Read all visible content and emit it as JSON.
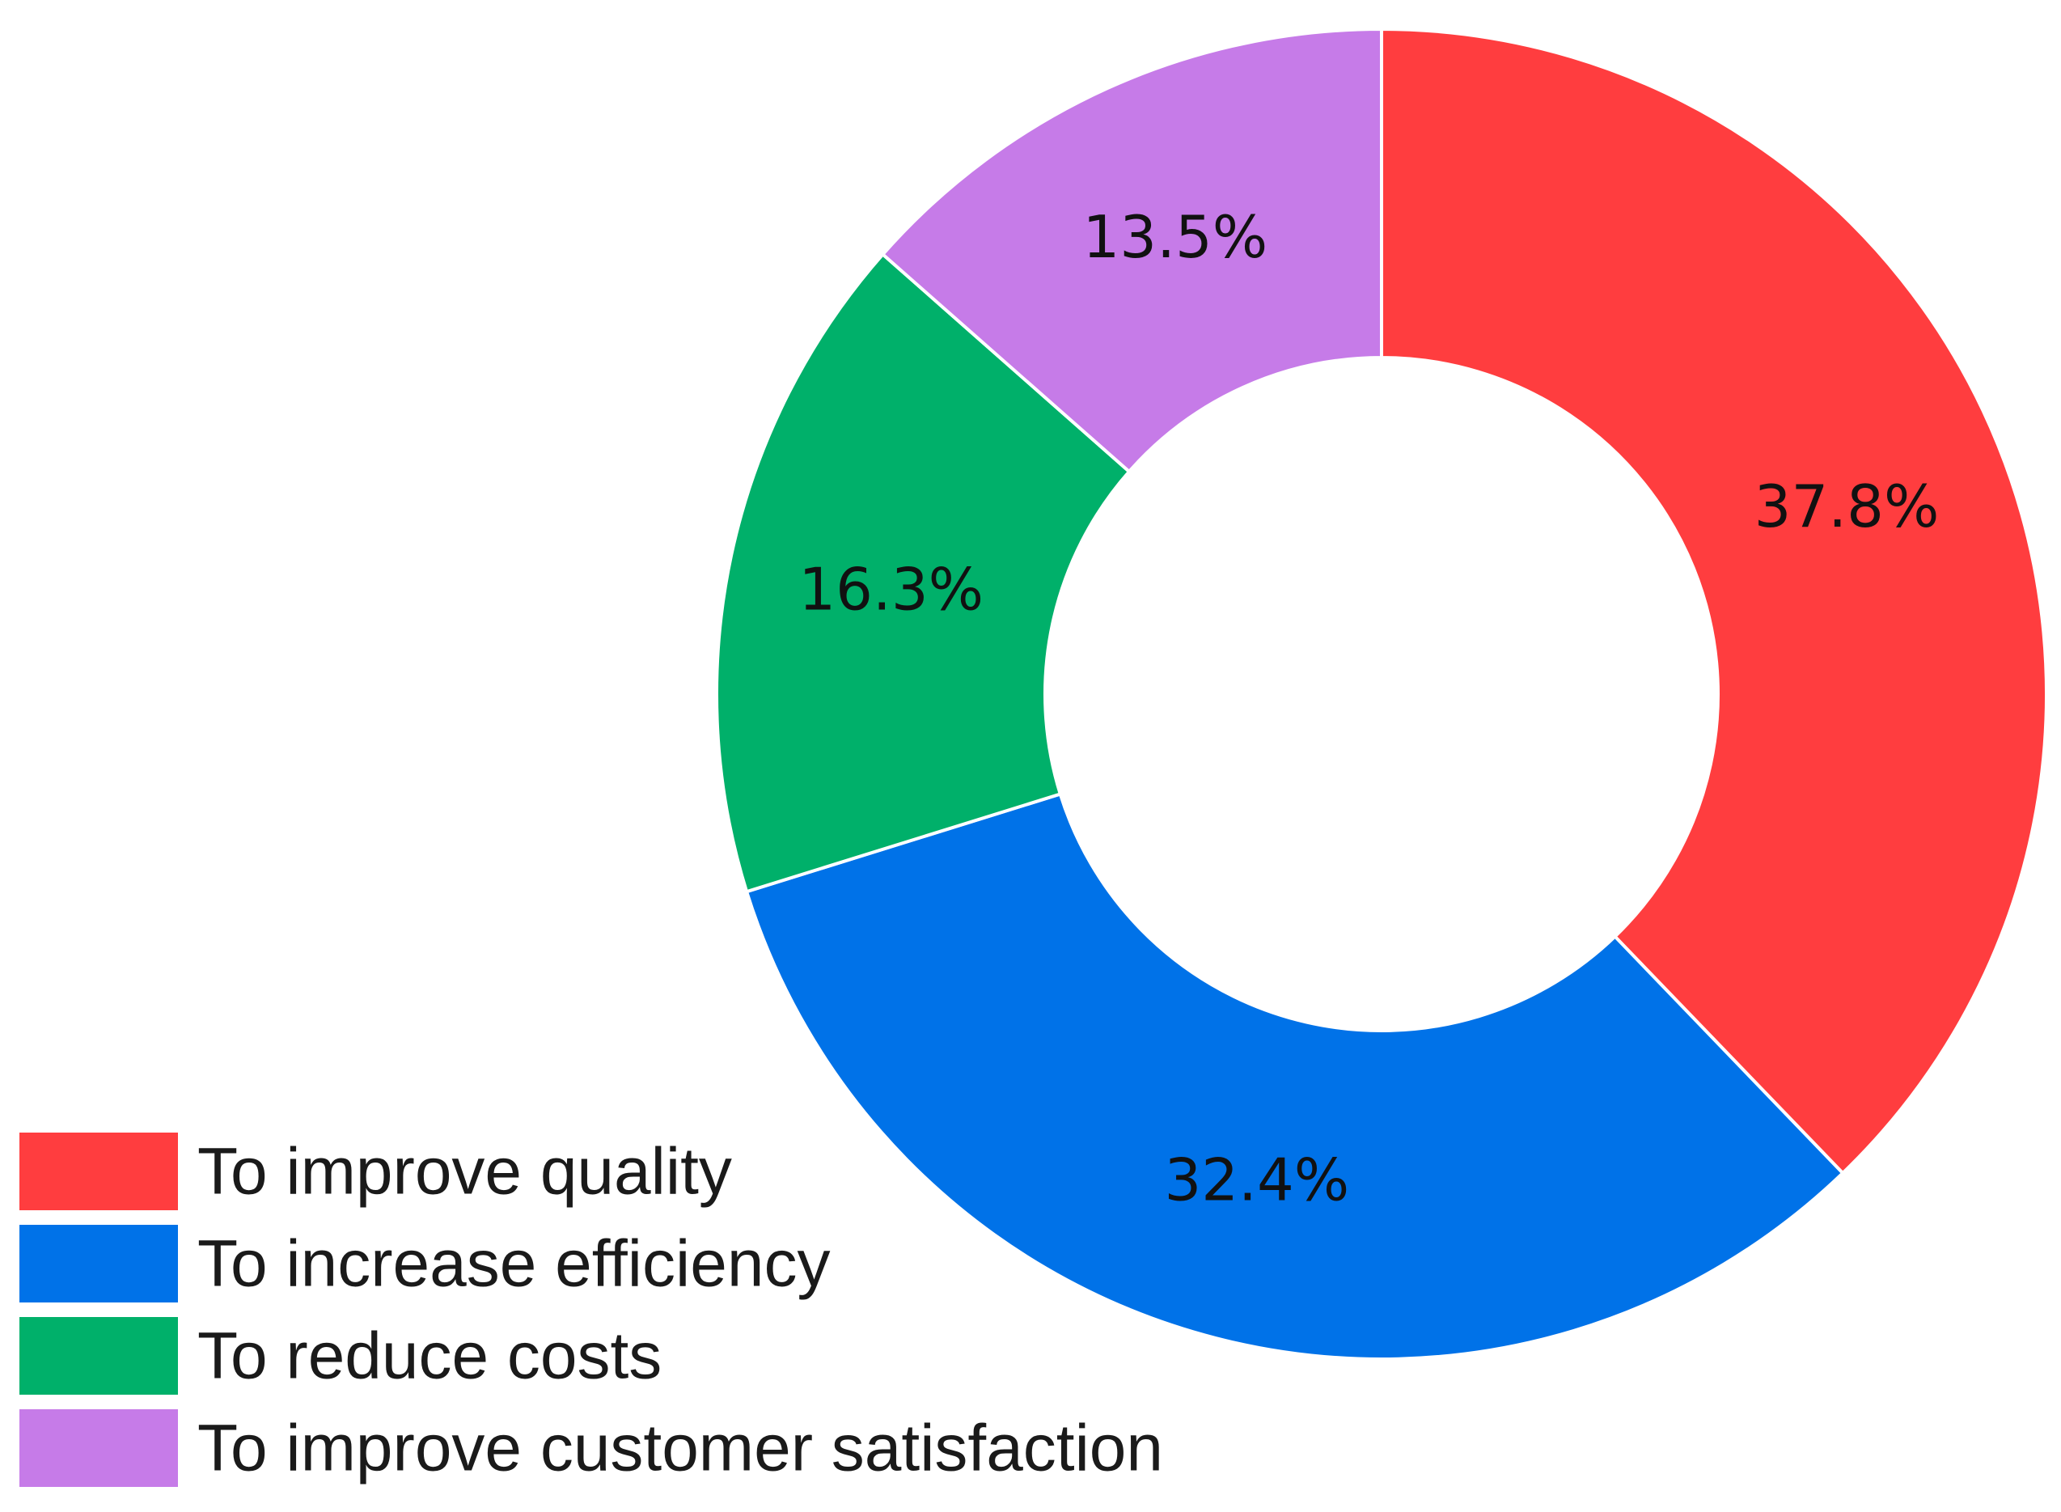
{
  "chart_data": {
    "type": "pie",
    "variant": "donut",
    "title": "",
    "categories": [
      "To improve quality",
      "To increase efficiency",
      "To reduce costs",
      "To improve customer satisfaction"
    ],
    "values": [
      37.8,
      32.4,
      16.3,
      13.5
    ],
    "value_labels": [
      "37.8%",
      "32.4%",
      "16.3%",
      "13.5%"
    ],
    "colors": [
      "#ff3d3f",
      "#0072e8",
      "#00b06a",
      "#c67be8"
    ],
    "legend_position": "bottom-left",
    "start": "top",
    "direction": "clockwise"
  }
}
